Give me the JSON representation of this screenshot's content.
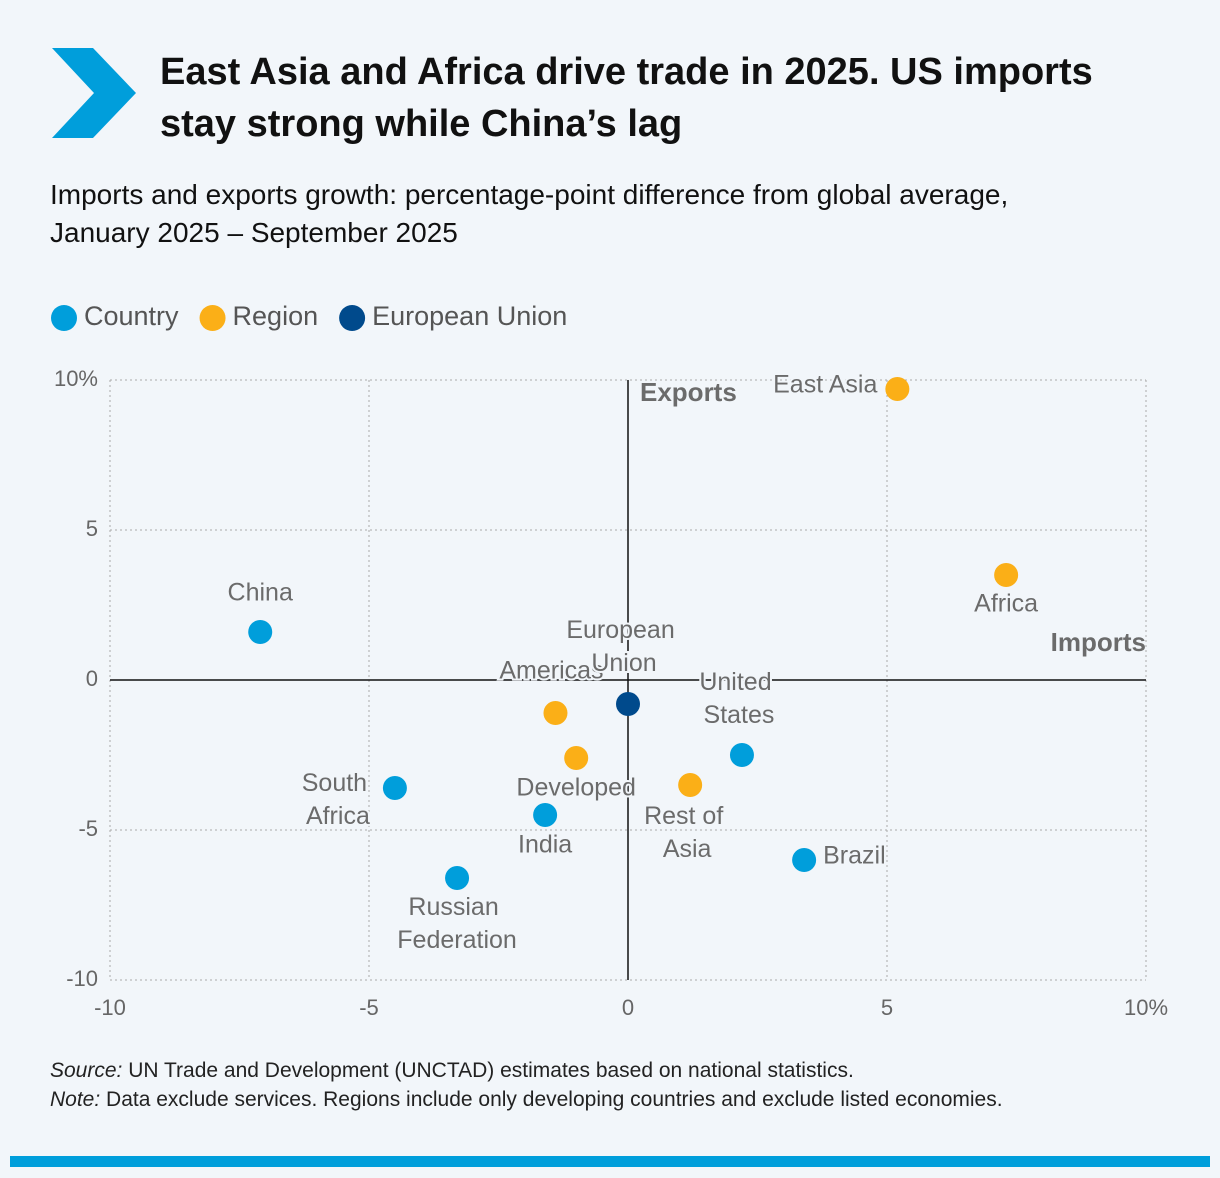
{
  "chart_data": {
    "type": "scatter",
    "title": "East Asia and Africa drive trade in 2025. US imports stay strong while China’s lag",
    "subtitle": "Imports and exports growth: percentage-point difference from global average, January 2025 – September 2025",
    "x_label": "Imports",
    "y_label": "Exports",
    "xlim": [
      -10,
      10
    ],
    "ylim": [
      -10,
      10
    ],
    "xticks": [
      -10,
      -5,
      0,
      5,
      {
        "value": 10,
        "label": "10%"
      }
    ],
    "yticks": [
      -10,
      -5,
      0,
      5,
      {
        "value": 10,
        "label": "10%"
      }
    ],
    "grid": true,
    "series": [
      {
        "name": "Country",
        "color": "#009edb",
        "labels": [
          "China",
          "United States",
          "South Africa",
          "India",
          "Russian Federation",
          "Brazil"
        ],
        "x": [
          -7.1,
          2.2,
          -4.5,
          -1.6,
          -3.3,
          3.4
        ],
        "values": [
          1.6,
          -2.5,
          -3.6,
          -4.5,
          -6.6,
          -6.0
        ]
      },
      {
        "name": "Region",
        "color": "#fbaf17",
        "labels": [
          "East Asia",
          "Africa",
          "Americas",
          "Developed",
          "Rest of Asia"
        ],
        "x": [
          5.2,
          7.3,
          -1.4,
          -1.0,
          1.2
        ],
        "values": [
          9.7,
          3.5,
          -1.1,
          -2.6,
          -3.5
        ]
      },
      {
        "name": "European Union",
        "color": "#004a8c",
        "labels": [
          "European Union"
        ],
        "x": [
          0
        ],
        "values": [
          -0.8
        ]
      }
    ],
    "source_label": "Source:",
    "source": "UN Trade and Development (UNCTAD) estimates based on national statistics.",
    "note_label": "Note:",
    "note": "Data exclude services. Regions include only developing countries and exclude listed economies."
  }
}
